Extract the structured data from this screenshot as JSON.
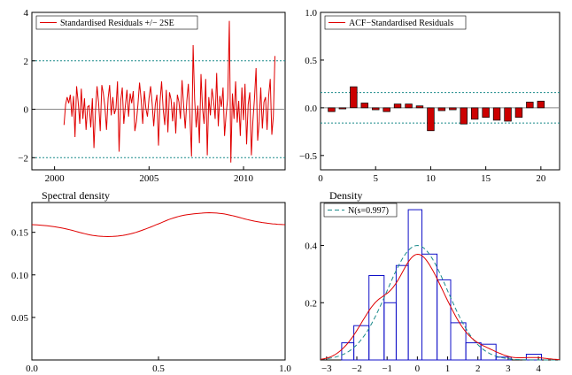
{
  "colors": {
    "red": "#e00000",
    "blue": "#1010c8",
    "teal": "#1a8a8a",
    "gray": "#888888",
    "bar_fill": "#cc0000"
  },
  "chart_data": [
    {
      "id": "residuals",
      "type": "line",
      "legend": "Standardised Residuals +/− 2SE",
      "xlim": [
        1998.8,
        2012.2
      ],
      "ylim": [
        -2.5,
        4
      ],
      "xticks": [
        2000,
        2005,
        2010
      ],
      "yticks": [
        -2,
        0,
        2,
        4
      ],
      "bands": [
        -2,
        2
      ],
      "start_year": 2000.5,
      "step": 0.0833,
      "values": [
        -0.65,
        0.2,
        0.5,
        0.25,
        0.6,
        -0.3,
        0.55,
        -1.15,
        0.95,
        0.3,
        -0.6,
        0.85,
        -0.4,
        0.45,
        -0.85,
        0.1,
        0.15,
        -0.75,
        0.45,
        -1.6,
        -0.1,
        0.95,
        0.25,
        -0.9,
        1.0,
        0.65,
        0.1,
        -0.85,
        0.45,
        1.0,
        -0.25,
        0.5,
        -0.2,
        0.05,
        1.15,
        -1.75,
        0.35,
        0.9,
        -0.6,
        0.15,
        0.8,
        -0.3,
        0.65,
        0.25,
        0.75,
        -0.9,
        -0.5,
        0.2,
        1.1,
        0.4,
        -0.6,
        0.75,
        0.05,
        -0.3,
        0.45,
        0.95,
        0.25,
        -0.7,
        0.2,
        0.6,
        -1.5,
        0.3,
        1.15,
        0.0,
        -0.65,
        0.8,
        -0.95,
        0.7,
        0.4,
        -0.5,
        0.3,
        -1.0,
        0.6,
        0.3,
        -0.4,
        1.2,
        0.15,
        -0.8,
        0.35,
        1.05,
        -0.3,
        -1.95,
        2.65,
        0.4,
        -0.75,
        0.15,
        -1.4,
        1.45,
        0.05,
        -0.6,
        1.25,
        -1.9,
        0.5,
        -0.25,
        0.85,
        0.35,
        -0.4,
        1.5,
        -0.7,
        0.55,
        0.1,
        0.9,
        -1.1,
        -0.2,
        0.45,
        3.65,
        -2.2,
        0.65,
        -0.4,
        1.15,
        -0.55,
        0.35,
        -1.1,
        0.9,
        -0.45,
        1.05,
        -1.45,
        0.2,
        0.7,
        -1.9,
        -0.5,
        0.45,
        1.7,
        -1.3,
        -0.5,
        0.9,
        -0.8,
        0.3,
        0.5,
        -0.85,
        0.55,
        1.25,
        -1.05,
        -0.3,
        2.2
      ]
    },
    {
      "id": "acf",
      "type": "bar",
      "legend": "ACF−Standardised Residuals",
      "xlim": [
        0,
        21.7
      ],
      "ylim": [
        -0.65,
        1.0
      ],
      "xticks": [
        0,
        5,
        10,
        15,
        20
      ],
      "yticks": [
        1.0,
        0.5,
        0.0,
        -0.5
      ],
      "ytick_labels": [
        "1.0",
        "0.5",
        "0.0",
        "−0.5"
      ],
      "bands": [
        0.16,
        -0.16
      ],
      "lags": [
        1,
        2,
        3,
        4,
        5,
        6,
        7,
        8,
        9,
        10,
        11,
        12,
        13,
        14,
        15,
        16,
        17,
        18,
        19,
        20
      ],
      "values": [
        -0.04,
        -0.01,
        0.22,
        0.05,
        -0.02,
        -0.04,
        0.04,
        0.04,
        0.02,
        -0.24,
        -0.03,
        -0.02,
        -0.17,
        -0.12,
        -0.1,
        -0.13,
        -0.14,
        -0.1,
        0.06,
        0.07
      ]
    },
    {
      "id": "spectral",
      "type": "line",
      "title": "Spectral density",
      "xlim": [
        0,
        1
      ],
      "ylim": [
        0,
        0.185
      ],
      "xticks": [
        0,
        0.5,
        1.0
      ],
      "xtick_labels": [
        "0.0",
        "0.5",
        "1.0"
      ],
      "yticks": [
        0.05,
        0.1,
        0.15
      ],
      "ytick_labels": [
        "0.05",
        "0.10",
        "0.15"
      ],
      "x": [
        0,
        0.05,
        0.1,
        0.15,
        0.2,
        0.25,
        0.3,
        0.35,
        0.4,
        0.45,
        0.5,
        0.55,
        0.6,
        0.65,
        0.7,
        0.75,
        0.8,
        0.85,
        0.9,
        0.95,
        1.0
      ],
      "values": [
        0.159,
        0.158,
        0.156,
        0.153,
        0.149,
        0.146,
        0.145,
        0.146,
        0.149,
        0.154,
        0.16,
        0.166,
        0.17,
        0.172,
        0.173,
        0.172,
        0.169,
        0.165,
        0.162,
        0.16,
        0.159
      ]
    },
    {
      "id": "density",
      "type": "histogram",
      "title": "Density",
      "legend": "N(s=0.997)",
      "xlim": [
        -3.2,
        4.7
      ],
      "ylim": [
        0,
        0.55
      ],
      "xticks": [
        -3,
        -2,
        -1,
        0,
        1,
        2,
        3,
        4
      ],
      "xtick_labels": [
        "−3",
        "−2",
        "−1",
        "0",
        "1",
        "2",
        "3",
        "4"
      ],
      "yticks": [
        0.2,
        0.4
      ],
      "ytick_labels": [
        "0.2",
        "0.4"
      ],
      "bins": [
        {
          "x0": -2.5,
          "x1": -2.1,
          "h": 0.06
        },
        {
          "x0": -2.1,
          "x1": -1.6,
          "h": 0.12
        },
        {
          "x0": -1.6,
          "x1": -1.1,
          "h": 0.295
        },
        {
          "x0": -1.1,
          "x1": -0.7,
          "h": 0.2
        },
        {
          "x0": -0.7,
          "x1": -0.3,
          "h": 0.33
        },
        {
          "x0": -0.3,
          "x1": 0.15,
          "h": 0.525
        },
        {
          "x0": 0.15,
          "x1": 0.65,
          "h": 0.37
        },
        {
          "x0": 0.65,
          "x1": 1.1,
          "h": 0.28
        },
        {
          "x0": 1.1,
          "x1": 1.6,
          "h": 0.13
        },
        {
          "x0": 1.6,
          "x1": 2.1,
          "h": 0.06
        },
        {
          "x0": 2.1,
          "x1": 2.6,
          "h": 0.055
        },
        {
          "x0": 2.6,
          "x1": 3.1,
          "h": 0.01
        },
        {
          "x0": 3.6,
          "x1": 4.1,
          "h": 0.02
        }
      ],
      "normal_sd": 0.997
    }
  ]
}
